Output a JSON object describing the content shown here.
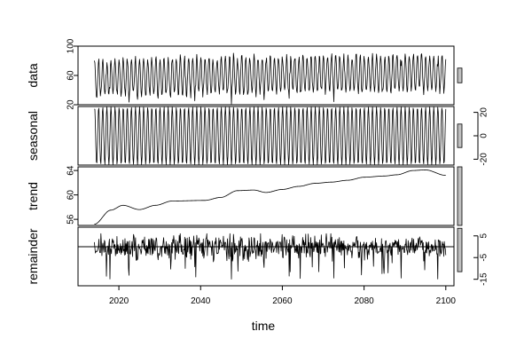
{
  "chart_data": {
    "type": "line",
    "title": "",
    "xlabel": "time",
    "xlim": [
      2010,
      2102
    ],
    "x_ticks": [
      2020,
      2040,
      2060,
      2080,
      2100
    ],
    "x_tick_labels": [
      "2020",
      "2040",
      "2060",
      "2080",
      "2100"
    ],
    "time_range": [
      2014,
      2100
    ],
    "seasonal_period": 1,
    "panels": [
      {
        "name": "data",
        "label": "data",
        "ylim": [
          20,
          100
        ],
        "y_ticks": [
          20,
          60,
          100
        ],
        "y_tick_labels": [
          "20",
          "60",
          "100"
        ],
        "tick_side": "left",
        "trend_anchors": [
          [
            2014,
            55.2
          ],
          [
            2018,
            57.5
          ],
          [
            2021,
            58.3
          ],
          [
            2025,
            57.6
          ],
          [
            2029,
            58.3
          ],
          [
            2033,
            59.0
          ],
          [
            2041,
            59.1
          ],
          [
            2045,
            59.6
          ],
          [
            2049,
            60.7
          ],
          [
            2053,
            60.8
          ],
          [
            2056,
            60.4
          ],
          [
            2060,
            60.9
          ],
          [
            2064,
            61.4
          ],
          [
            2068,
            61.9
          ],
          [
            2072,
            62.1
          ],
          [
            2076,
            62.4
          ],
          [
            2080,
            62.9
          ],
          [
            2085,
            63.1
          ],
          [
            2088,
            63.3
          ],
          [
            2092,
            64.0
          ],
          [
            2095,
            64.1
          ],
          [
            2100,
            63.2
          ]
        ],
        "seasonal_amplitude": 24.5,
        "remainder_range": [
          -15,
          6
        ]
      },
      {
        "name": "seasonal",
        "label": "seasonal",
        "ylim": [
          -25,
          25
        ],
        "y_ticks": [
          -20,
          0,
          20
        ],
        "y_tick_labels": [
          "-20",
          "0",
          "20"
        ],
        "tick_side": "right",
        "seasonal_amplitude": 24.5
      },
      {
        "name": "trend",
        "label": "trend",
        "ylim": [
          55,
          64.6
        ],
        "y_ticks": [
          56,
          60,
          64
        ],
        "y_tick_labels": [
          "56",
          "60",
          "64"
        ],
        "tick_side": "left",
        "trend_anchors": [
          [
            2014,
            55.2
          ],
          [
            2018,
            57.5
          ],
          [
            2021,
            58.3
          ],
          [
            2025,
            57.6
          ],
          [
            2029,
            58.3
          ],
          [
            2033,
            59.0
          ],
          [
            2041,
            59.1
          ],
          [
            2045,
            59.6
          ],
          [
            2049,
            60.7
          ],
          [
            2053,
            60.8
          ],
          [
            2056,
            60.4
          ],
          [
            2060,
            60.9
          ],
          [
            2064,
            61.4
          ],
          [
            2068,
            61.9
          ],
          [
            2072,
            62.1
          ],
          [
            2076,
            62.4
          ],
          [
            2080,
            62.9
          ],
          [
            2085,
            63.1
          ],
          [
            2088,
            63.3
          ],
          [
            2092,
            64.0
          ],
          [
            2095,
            64.1
          ],
          [
            2100,
            63.2
          ]
        ]
      },
      {
        "name": "remainder",
        "label": "remainder",
        "ylim": [
          -18,
          9
        ],
        "y_ticks": [
          -15,
          -5,
          5
        ],
        "y_tick_labels": [
          "-15",
          "-5",
          "5"
        ],
        "tick_side": "right",
        "zero_line": true,
        "remainder_range": [
          -15,
          6
        ]
      }
    ],
    "grid": false,
    "legend": "none"
  }
}
